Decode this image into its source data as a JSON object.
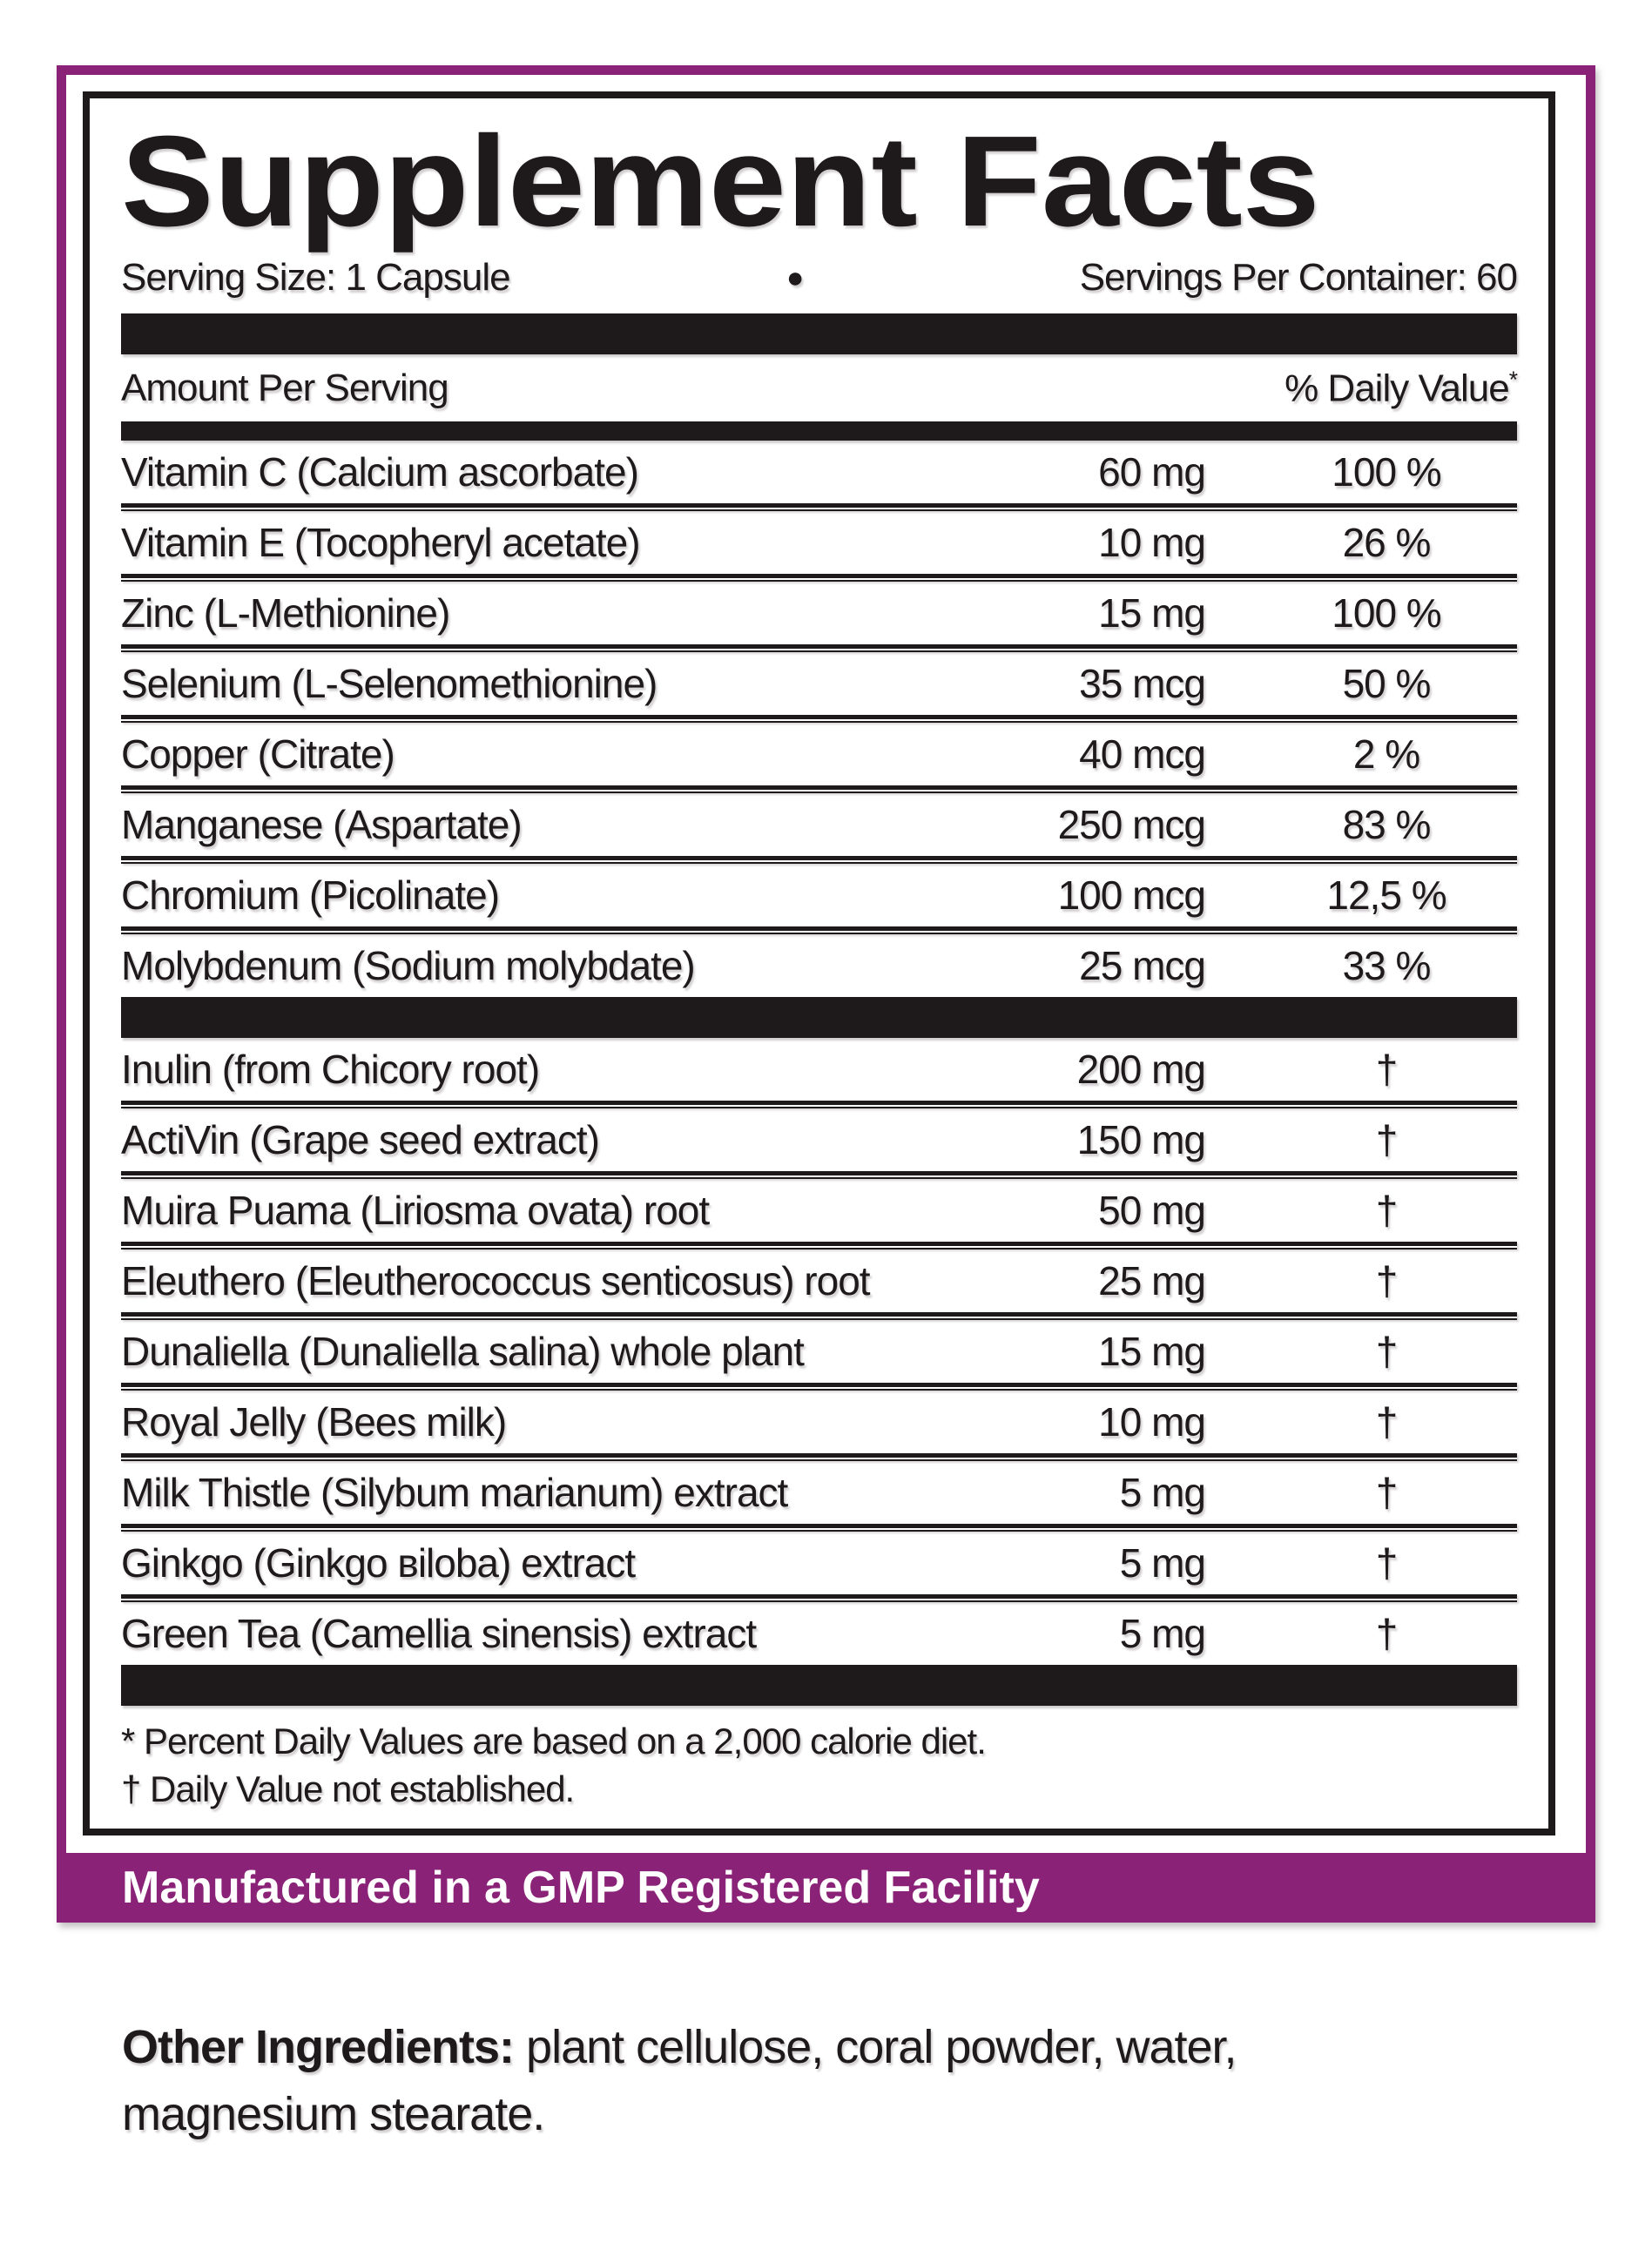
{
  "colors": {
    "purple": "#8a2277",
    "ink": "#1e191a"
  },
  "header": {
    "title": "Supplement Facts",
    "serving_size": "Serving Size: 1 Capsule",
    "bullet": "●",
    "servings_per_container": "Servings Per Container: 60"
  },
  "table": {
    "col_amount_header": "Amount Per Serving",
    "col_dv_header": "% Daily Value",
    "col_dv_header_mark": "*",
    "section1": [
      {
        "name": "Vitamin C (Calcium ascorbate)",
        "amount": "60 mg",
        "dv": "100 %"
      },
      {
        "name": "Vitamin E (Tocopheryl acetate)",
        "amount": "10 mg",
        "dv": "26 %"
      },
      {
        "name": "Zinc (L-Methionine)",
        "amount": "15 mg",
        "dv": "100 %"
      },
      {
        "name": "Selenium (L-Selenomethionine)",
        "amount": "35 mcg",
        "dv": "50 %"
      },
      {
        "name": "Copper (Citrate)",
        "amount": "40 mcg",
        "dv": "2 %"
      },
      {
        "name": "Manganese (Aspartate)",
        "amount": "250 mcg",
        "dv": "83 %"
      },
      {
        "name": "Chromium (Picolinate)",
        "amount": "100 mcg",
        "dv": "12,5 %"
      },
      {
        "name": "Molybdenum (Sodium molybdate)",
        "amount": "25 mcg",
        "dv": "33 %"
      }
    ],
    "section2": [
      {
        "name": "Inulin (from Chicory root)",
        "amount": "200 mg",
        "dv": "†"
      },
      {
        "name": "ActiVin (Grape seed extract)",
        "amount": "150 mg",
        "dv": "†"
      },
      {
        "name": "Muira Puama (Liriosma ovata) root",
        "amount": "50 mg",
        "dv": "†"
      },
      {
        "name": "Eleuthero (Eleutherococcus senticosus) root",
        "amount": "25 mg",
        "dv": "†"
      },
      {
        "name": "Dunaliella (Dunaliella salina) whole plant",
        "amount": "15 mg",
        "dv": "†"
      },
      {
        "name": "Royal Jelly (Bees milk)",
        "amount": "10 mg",
        "dv": "†"
      },
      {
        "name": "Milk Thistle (Silybum marianum) extract",
        "amount": "5 mg",
        "dv": "†"
      },
      {
        "name": "Ginkgo (Ginkgo вiloba) extract",
        "amount": "5 mg",
        "dv": "†"
      },
      {
        "name": "Green Tea (Camellia sinensis) extract",
        "amount": "5 mg",
        "dv": "†"
      }
    ]
  },
  "footnotes": {
    "daily_value": "* Percent Daily Values are based on a 2,000 calorie diet.",
    "not_established": "† Daily Value not established."
  },
  "banner": {
    "text": "Manufactured in a GMP Registered Facility"
  },
  "other_ingredients": {
    "label": "Other Ingredients:",
    "text": " plant cellulose, coral powder, water, magnesium stearate."
  }
}
